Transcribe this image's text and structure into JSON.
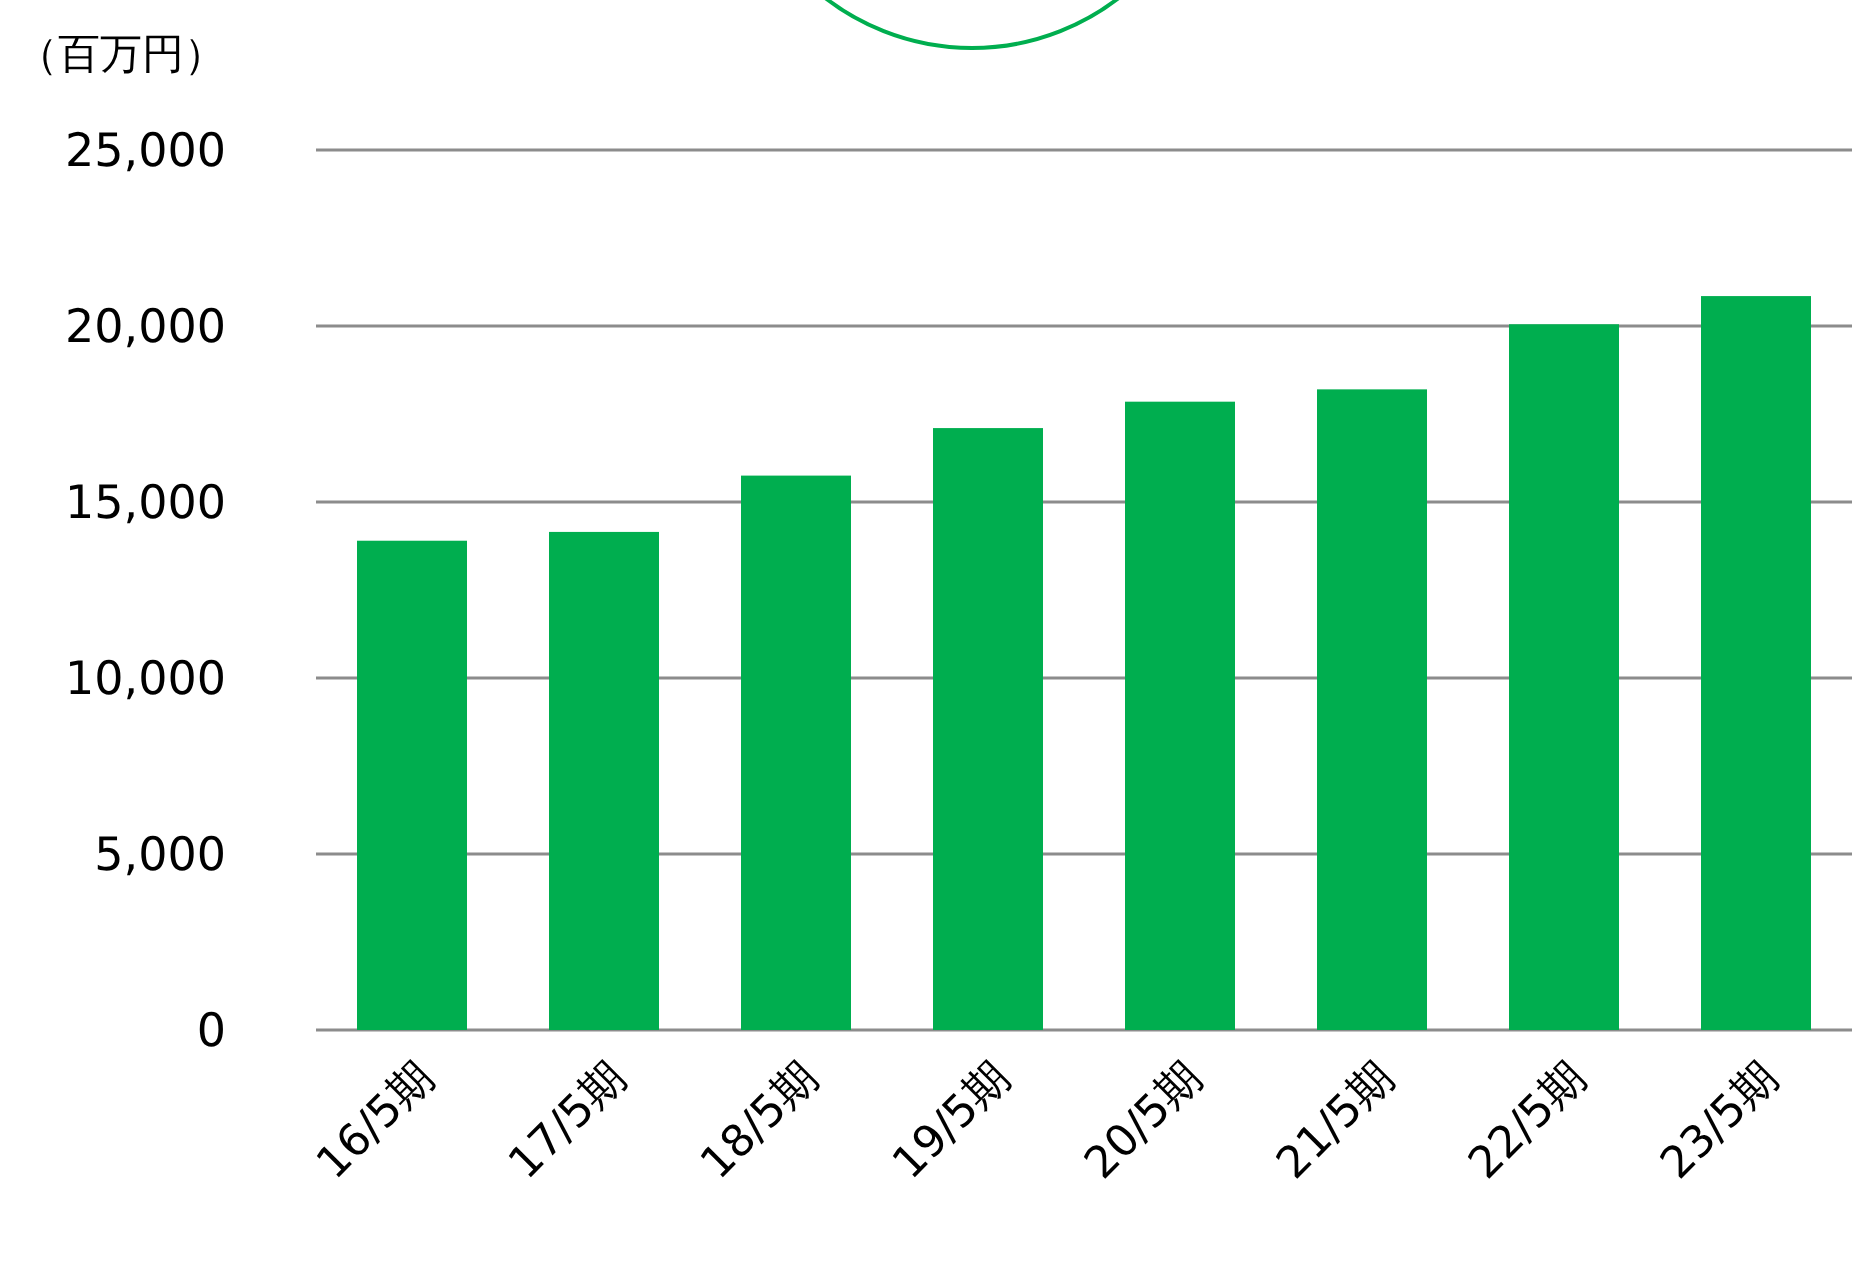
{
  "chart_data": {
    "type": "bar",
    "ylabel": "（百万円）",
    "categories": [
      "16/5期",
      "17/5期",
      "18/5期",
      "19/5期",
      "20/5期",
      "21/5期",
      "22/5期",
      "23/5期"
    ],
    "values": [
      13900,
      14150,
      15750,
      17100,
      17850,
      18200,
      20050,
      20850
    ],
    "color": "#00ae4f",
    "ylim": [
      0,
      25000
    ],
    "yticks": [
      {
        "value": 0,
        "label": "0"
      },
      {
        "value": 5000,
        "label": "5,000"
      },
      {
        "value": 10000,
        "label": "10,000"
      },
      {
        "value": 15000,
        "label": "15,000"
      },
      {
        "value": 20000,
        "label": "20,000"
      },
      {
        "value": 25000,
        "label": "25,000"
      }
    ],
    "grid": "y"
  }
}
